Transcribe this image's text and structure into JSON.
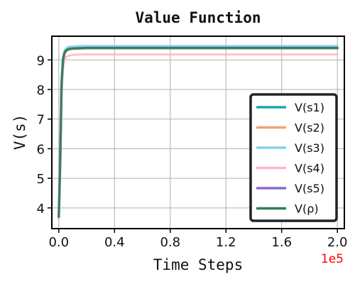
{
  "chart_data": {
    "type": "line",
    "title": "Value Function",
    "xlabel": "Time Steps",
    "ylabel": "V(s)",
    "x_offset_label": "1e5",
    "xlim": [
      -0.05,
      2.05
    ],
    "ylim": [
      3.3,
      9.8
    ],
    "x_ticks": [
      0.0,
      0.4,
      0.8,
      1.2,
      1.6,
      2.0
    ],
    "x_tick_labels": [
      "0.0",
      "0.4",
      "0.8",
      "1.2",
      "1.6",
      "2.0"
    ],
    "y_ticks": [
      4,
      5,
      6,
      7,
      8,
      9
    ],
    "y_tick_labels": [
      "4",
      "5",
      "6",
      "7",
      "8",
      "9"
    ],
    "grid": true,
    "legend_position": "lower-right",
    "x": [
      0.0,
      0.01,
      0.02,
      0.03,
      0.04,
      0.05,
      0.06,
      0.08,
      0.1,
      0.15,
      0.2,
      0.3,
      0.5,
      1.0,
      1.5,
      2.0
    ],
    "series": [
      {
        "name": "V(s1)",
        "color": "#1aa9a9",
        "width": 3,
        "values": [
          3.7,
          5.6,
          8.2,
          9.0,
          9.22,
          9.3,
          9.35,
          9.38,
          9.4,
          9.41,
          9.42,
          9.42,
          9.42,
          9.42,
          9.42,
          9.42
        ]
      },
      {
        "name": "V(s2)",
        "color": "#f4a07a",
        "width": 3,
        "values": [
          3.7,
          5.5,
          8.1,
          8.95,
          9.2,
          9.28,
          9.33,
          9.36,
          9.38,
          9.39,
          9.4,
          9.4,
          9.4,
          9.4,
          9.4,
          9.4
        ]
      },
      {
        "name": "V(s3)",
        "color": "#87ceeb",
        "width": 3,
        "values": [
          3.75,
          5.7,
          8.3,
          9.1,
          9.3,
          9.38,
          9.42,
          9.45,
          9.46,
          9.47,
          9.47,
          9.47,
          9.47,
          9.47,
          9.47,
          9.47
        ]
      },
      {
        "name": "V(s4)",
        "color": "#ffb6c1",
        "width": 3,
        "values": [
          3.6,
          5.3,
          7.8,
          8.7,
          8.98,
          9.08,
          9.12,
          9.15,
          9.17,
          9.18,
          9.18,
          9.18,
          9.18,
          9.18,
          9.18,
          9.18
        ]
      },
      {
        "name": "V(s5)",
        "color": "#8a6bd1",
        "width": 3,
        "values": [
          3.7,
          5.6,
          8.2,
          9.0,
          9.22,
          9.3,
          9.35,
          9.38,
          9.39,
          9.4,
          9.41,
          9.41,
          9.41,
          9.41,
          9.41,
          9.41
        ]
      },
      {
        "name": "V(ρ)",
        "color": "#2e7d52",
        "width": 3.5,
        "values": [
          3.7,
          5.6,
          8.2,
          9.0,
          9.22,
          9.3,
          9.34,
          9.37,
          9.38,
          9.39,
          9.4,
          9.4,
          9.4,
          9.4,
          9.4,
          9.4
        ]
      }
    ],
    "colors": {
      "offset_label": "#ff0000",
      "grid": "#b0b0b0",
      "frame": "#000000"
    }
  }
}
